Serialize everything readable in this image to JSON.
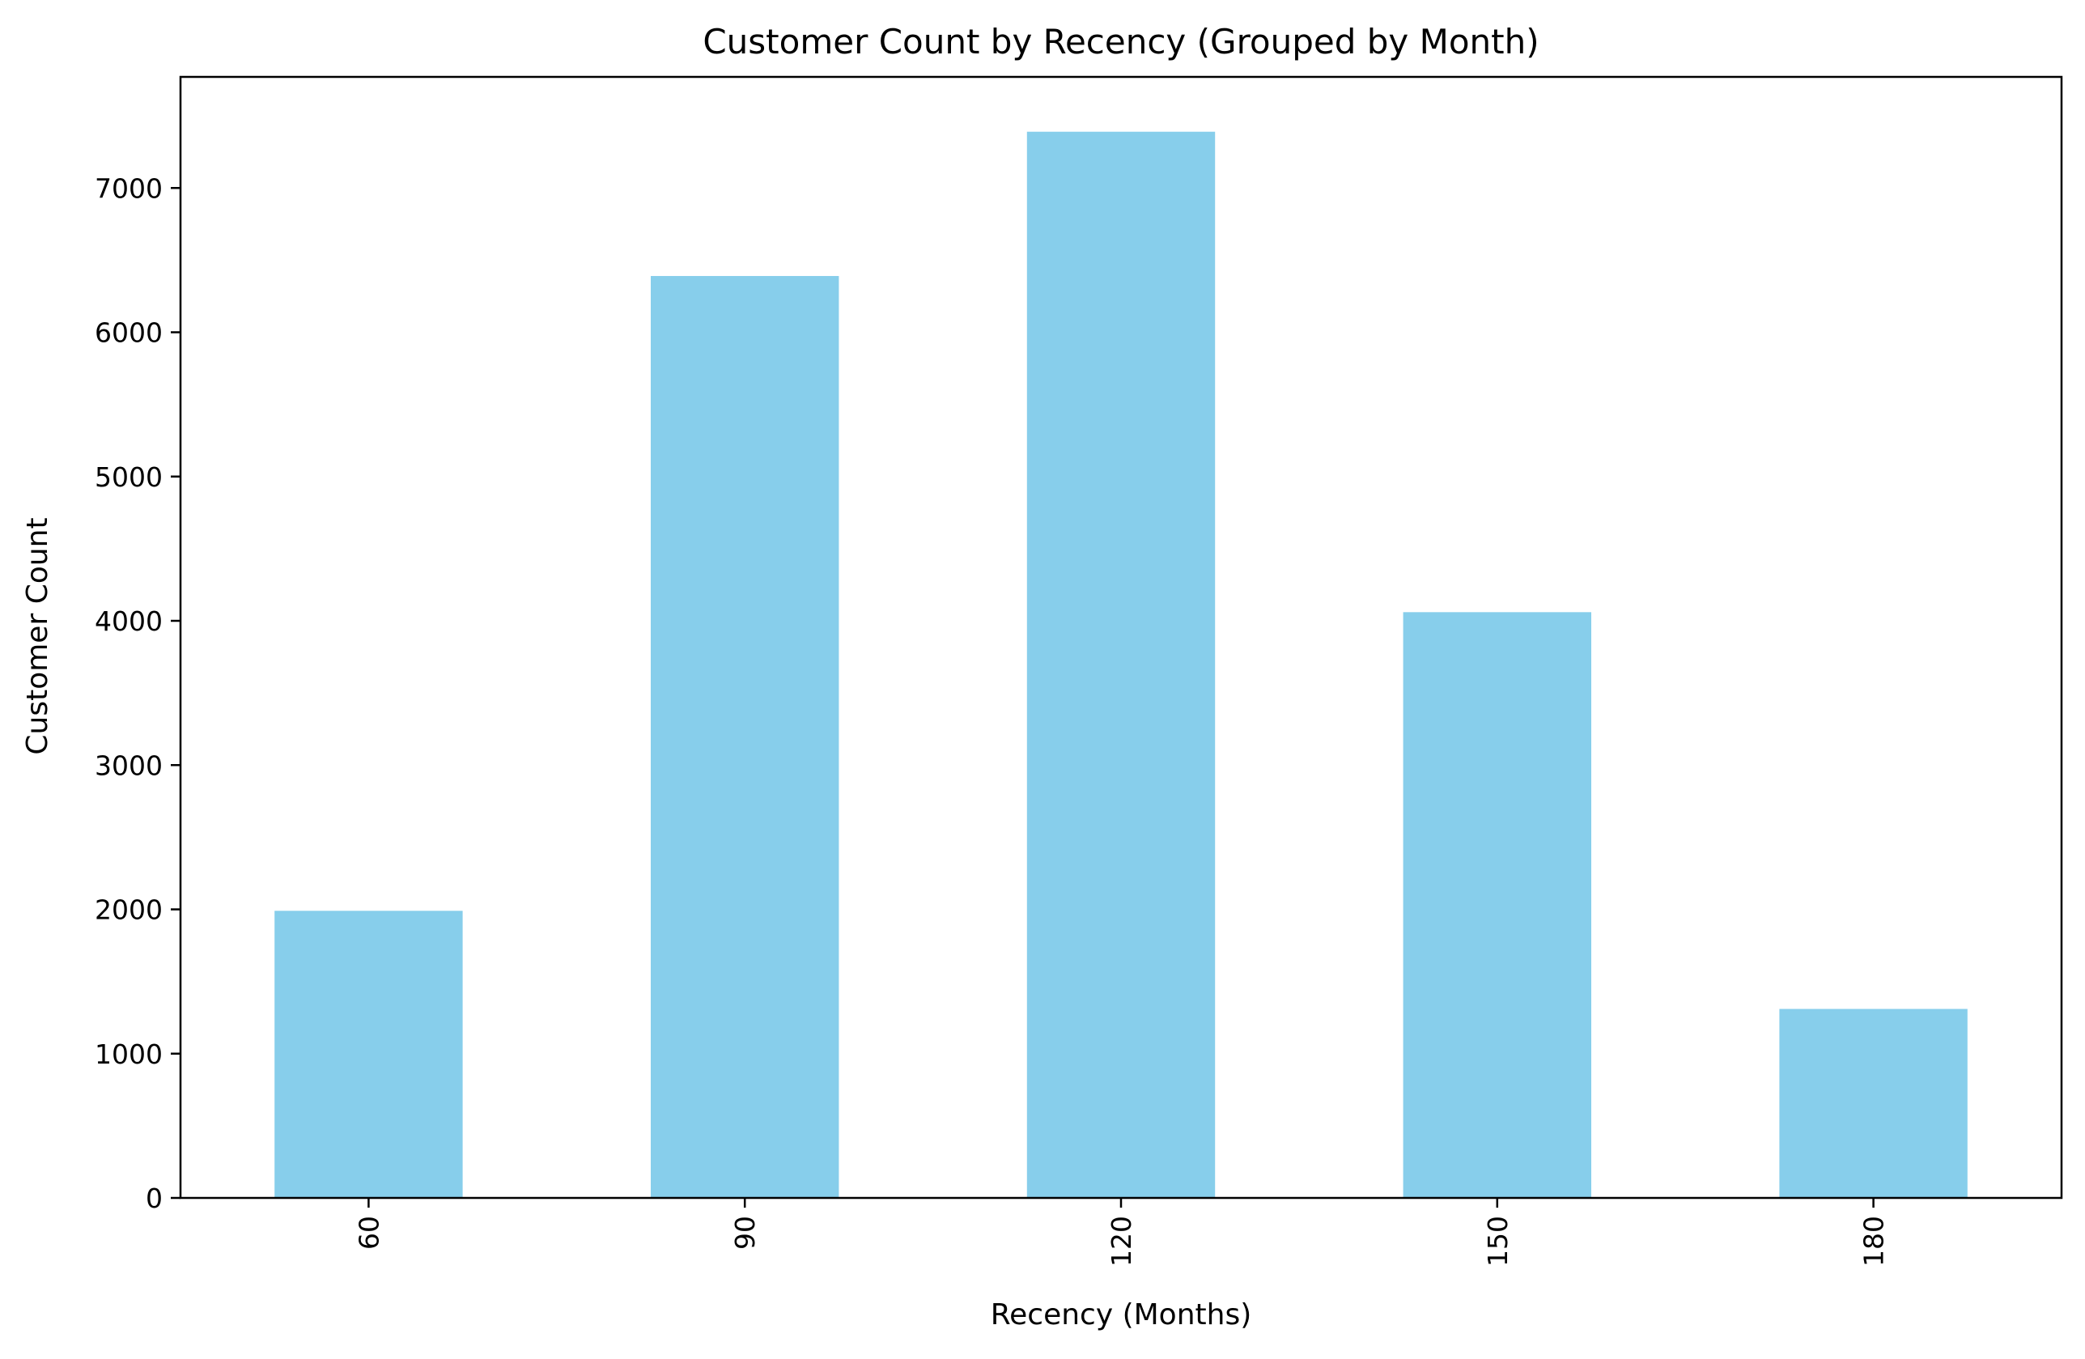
{
  "chart_data": {
    "type": "bar",
    "title": "Customer Count by Recency (Grouped by Month)",
    "xlabel": "Recency (Months)",
    "ylabel": "Customer Count",
    "categories": [
      "60",
      "90",
      "120",
      "150",
      "180"
    ],
    "values": [
      1990,
      6390,
      7390,
      4060,
      1310
    ],
    "ylim": [
      0,
      7770
    ],
    "yticks": [
      0,
      1000,
      2000,
      3000,
      4000,
      5000,
      6000,
      7000
    ],
    "ytick_labels": [
      "0",
      "1000",
      "2000",
      "3000",
      "4000",
      "5000",
      "6000",
      "7000"
    ],
    "xtick_rotation": "vertical",
    "grid": false,
    "legend": "none",
    "bar_color": "#87CEEB"
  }
}
